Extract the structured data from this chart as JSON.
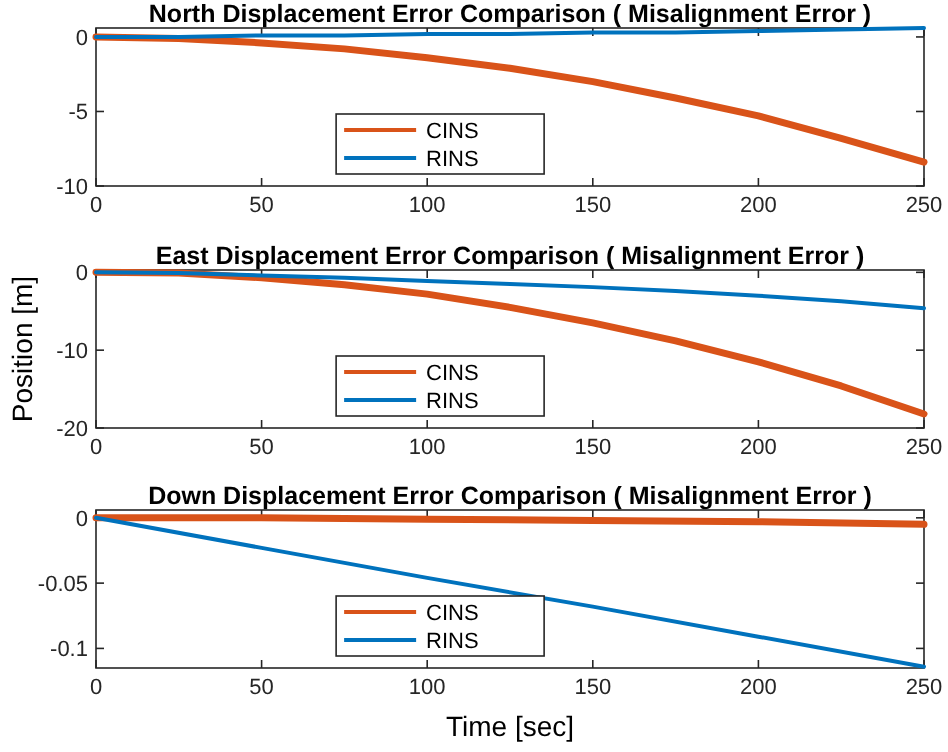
{
  "chart_data": [
    {
      "type": "line",
      "title": "North Displacement Error Comparison ( Misalignment Error )",
      "x": [
        0,
        25,
        50,
        75,
        100,
        125,
        150,
        175,
        200,
        225,
        250
      ],
      "series": [
        {
          "name": "CINS",
          "color": "#d95319",
          "values": [
            0,
            -0.1,
            -0.4,
            -0.8,
            -1.4,
            -2.1,
            -3,
            -4.1,
            -5.3,
            -6.8,
            -8.4
          ]
        },
        {
          "name": "RINS",
          "color": "#0072bd",
          "values": [
            0,
            0,
            0.1,
            0.1,
            0.2,
            0.2,
            0.3,
            0.3,
            0.4,
            0.5,
            0.6
          ]
        }
      ],
      "xlim": [
        0,
        250
      ],
      "xticks": [
        0,
        50,
        100,
        150,
        200,
        250
      ],
      "ylim": [
        -10,
        0.6
      ],
      "yticks": [
        -10,
        -5,
        0
      ],
      "legend": "bottom left",
      "grid": false
    },
    {
      "type": "line",
      "title": "East Displacement Error Comparison ( Misalignment Error )",
      "ylabel": "Position [m]",
      "x": [
        0,
        25,
        50,
        75,
        100,
        125,
        150,
        175,
        200,
        225,
        250
      ],
      "series": [
        {
          "name": "CINS",
          "color": "#d95319",
          "values": [
            0,
            -0.1,
            -0.7,
            -1.6,
            -2.8,
            -4.5,
            -6.5,
            -8.8,
            -11.5,
            -14.6,
            -18.2
          ]
        },
        {
          "name": "RINS",
          "color": "#0072bd",
          "values": [
            0,
            -0.1,
            -0.4,
            -0.7,
            -1.1,
            -1.5,
            -1.9,
            -2.4,
            -3,
            -3.7,
            -4.6
          ]
        }
      ],
      "xlim": [
        0,
        250
      ],
      "xticks": [
        0,
        50,
        100,
        150,
        200,
        250
      ],
      "ylim": [
        -20,
        0.3
      ],
      "yticks": [
        -20,
        -10,
        0
      ],
      "legend": "bottom left",
      "grid": false
    },
    {
      "type": "line",
      "title": "Down Displacement Error Comparison ( Misalignment Error )",
      "xlabel": "Time [sec]",
      "x": [
        0,
        50,
        100,
        150,
        200,
        250
      ],
      "series": [
        {
          "name": "CINS",
          "color": "#d95319",
          "values": [
            0,
            0,
            -0.001,
            -0.002,
            -0.003,
            -0.005
          ]
        },
        {
          "name": "RINS",
          "color": "#0072bd",
          "values": [
            0,
            -0.023,
            -0.046,
            -0.068,
            -0.091,
            -0.114
          ]
        }
      ],
      "xlim": [
        0,
        250
      ],
      "xticks": [
        0,
        50,
        100,
        150,
        200,
        250
      ],
      "ylim": [
        -0.115,
        0.006
      ],
      "yticks": [
        -0.1,
        -0.05,
        0
      ],
      "legend": "bottom left",
      "grid": false
    }
  ]
}
